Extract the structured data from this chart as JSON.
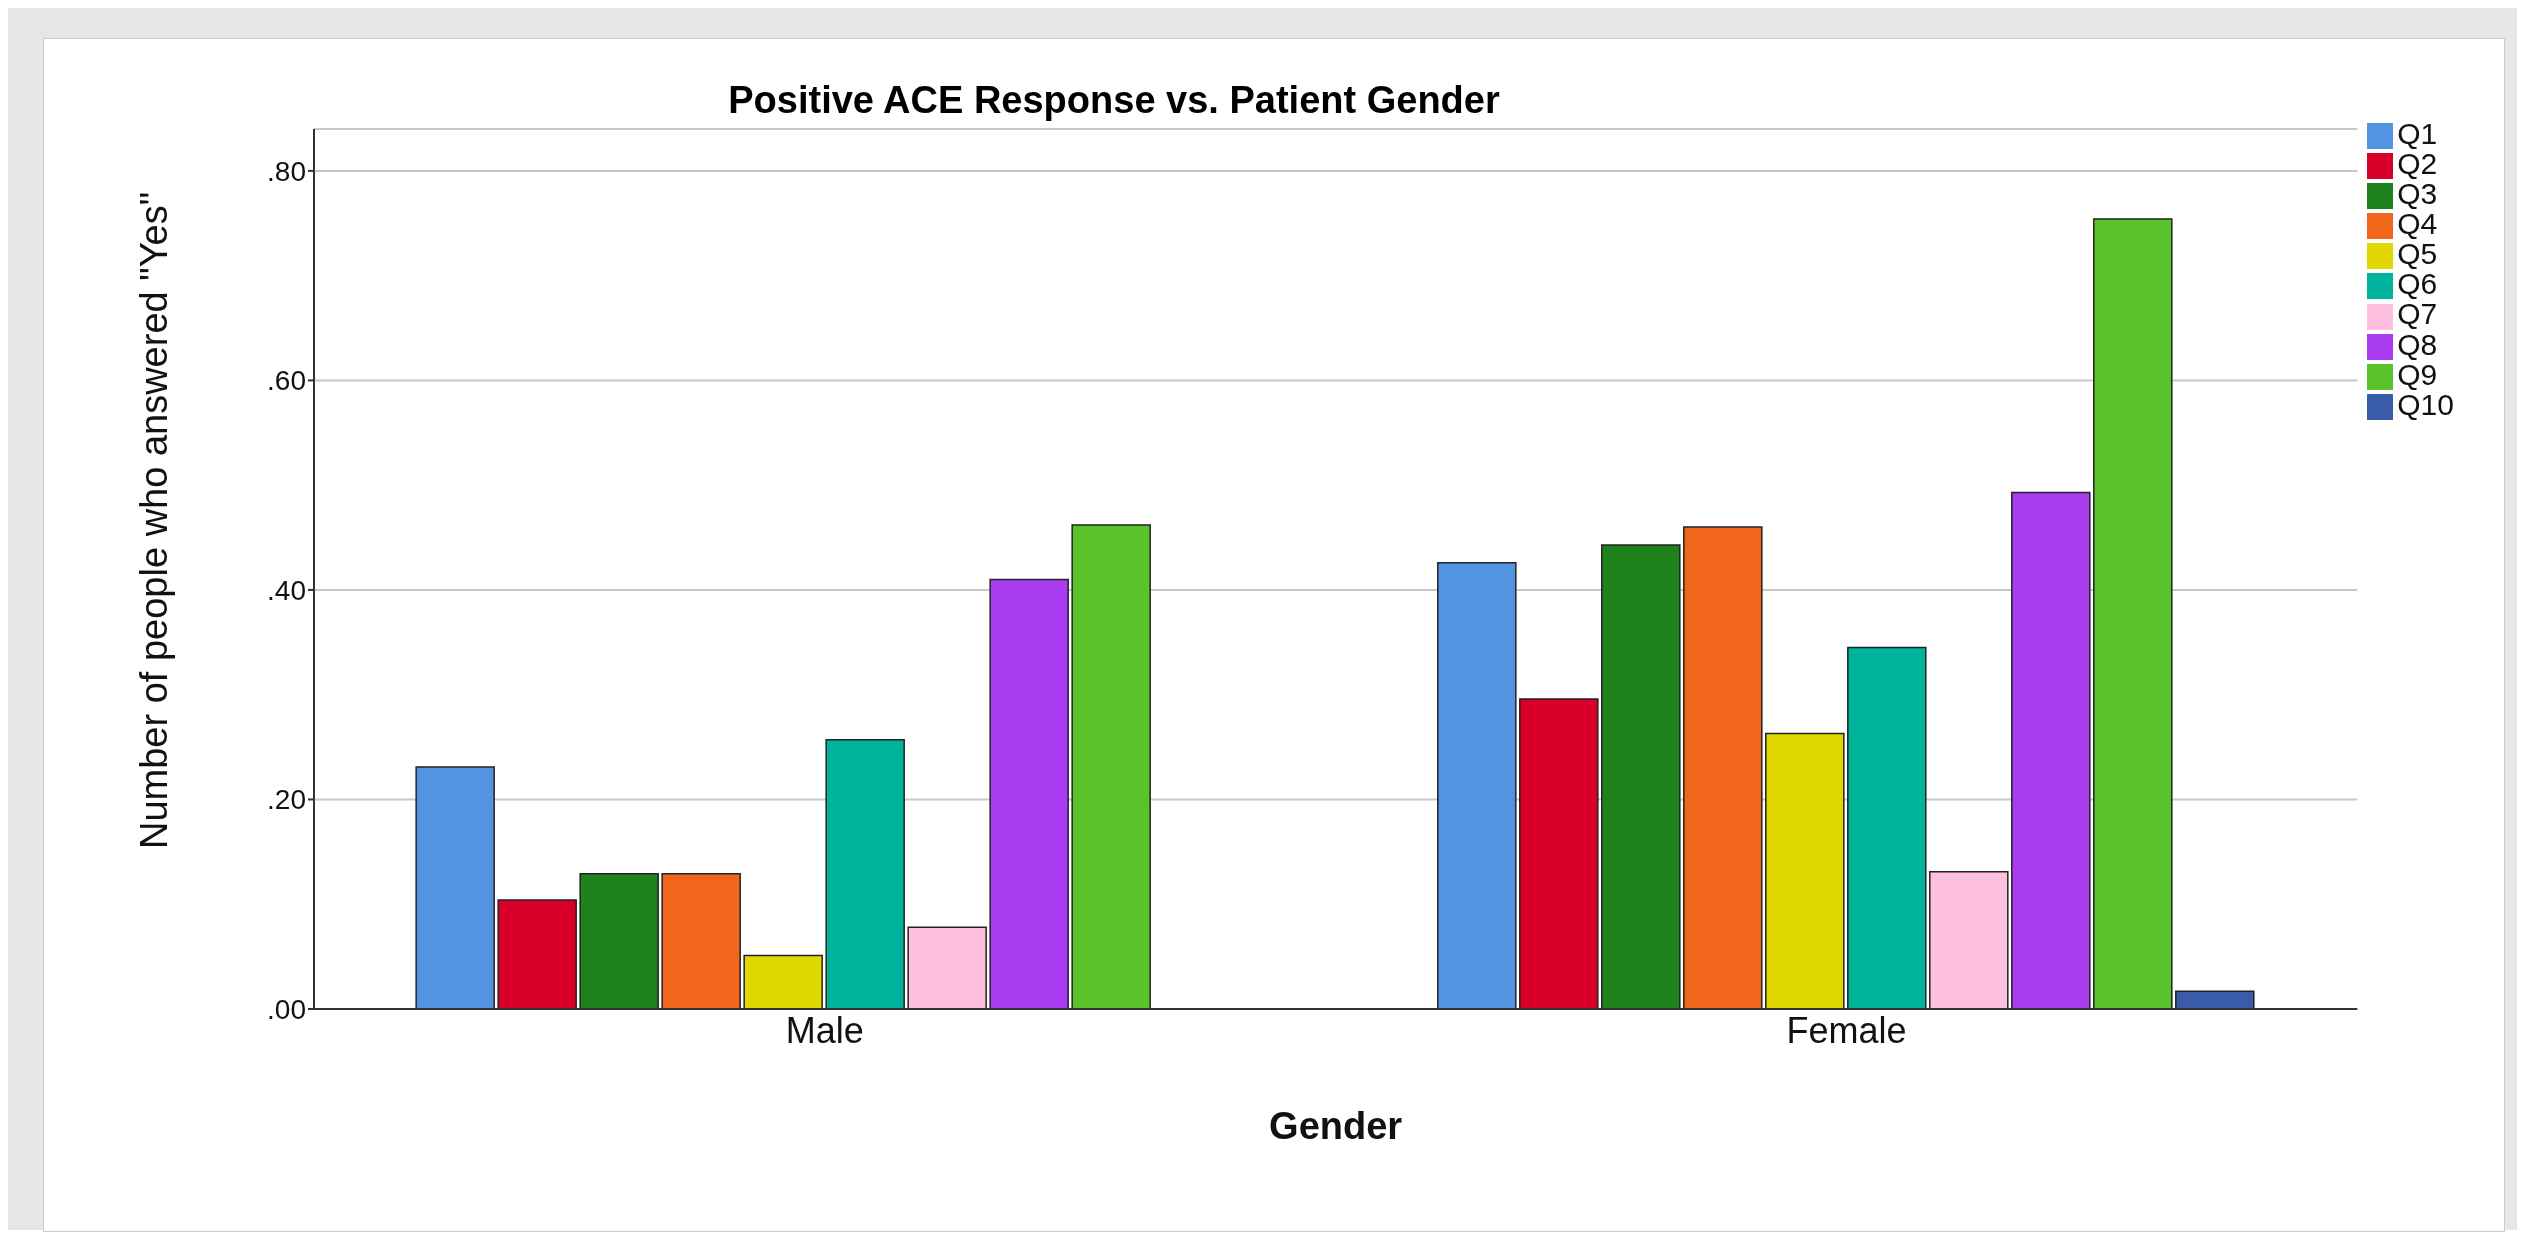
{
  "chart_data": {
    "type": "bar",
    "title": "Positive ACE Response vs. Patient Gender",
    "xlabel": "Gender",
    "ylabel": "Number of people who answered \"Yes\"",
    "categories": [
      "Male",
      "Female"
    ],
    "series": [
      {
        "name": "Q1",
        "color": "#5294e2",
        "values": [
          0.231,
          0.426
        ]
      },
      {
        "name": "Q2",
        "color": "#d8002a",
        "values": [
          0.104,
          0.296
        ]
      },
      {
        "name": "Q3",
        "color": "#20821c",
        "values": [
          0.129,
          0.443
        ]
      },
      {
        "name": "Q4",
        "color": "#f0661a",
        "values": [
          0.129,
          0.46
        ]
      },
      {
        "name": "Q5",
        "color": "#e0d800",
        "values": [
          0.051,
          0.263
        ]
      },
      {
        "name": "Q6",
        "color": "#00b39c",
        "values": [
          0.257,
          0.345
        ]
      },
      {
        "name": "Q7",
        "color": "#ffc0e0",
        "values": [
          0.078,
          0.131
        ]
      },
      {
        "name": "Q8",
        "color": "#a93cf0",
        "values": [
          0.41,
          0.493
        ]
      },
      {
        "name": "Q9",
        "color": "#5ac22a",
        "values": [
          0.462,
          0.754
        ]
      },
      {
        "name": "Q10",
        "color": "#3a5ba8",
        "values": [
          0,
          0.017
        ]
      }
    ],
    "ylim": [
      0,
      0.84
    ],
    "yticks": [
      {
        "value": 0,
        "label": ".00"
      },
      {
        "value": 0.2,
        "label": ".20"
      },
      {
        "value": 0.4,
        "label": ".40"
      },
      {
        "value": 0.6,
        "label": ".60"
      },
      {
        "value": 0.8,
        "label": ".80"
      }
    ],
    "grid": "y",
    "legend": "top right"
  }
}
